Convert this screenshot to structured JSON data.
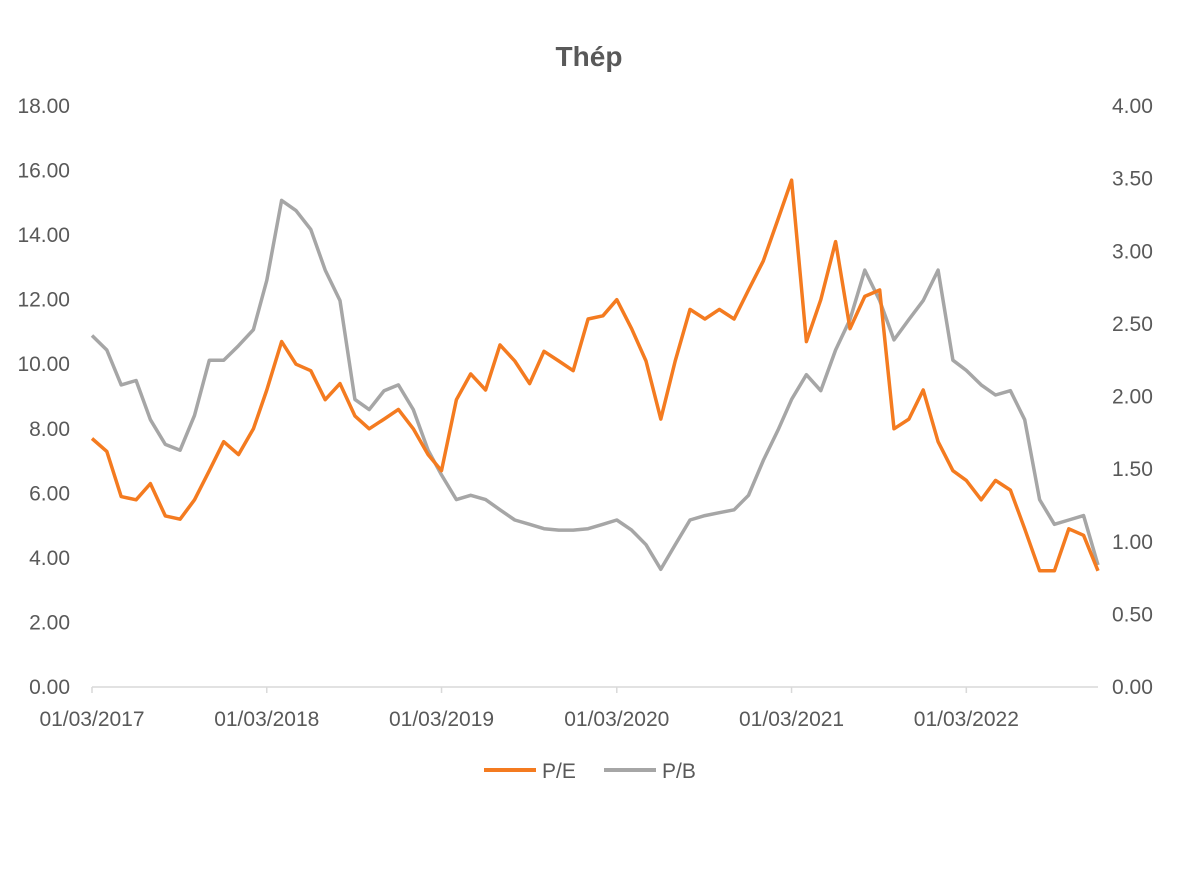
{
  "chart_data": {
    "type": "line",
    "title": "Thép",
    "y_left": {
      "range": [
        0,
        18
      ],
      "ticks": [
        "0.00",
        "2.00",
        "4.00",
        "6.00",
        "8.00",
        "10.00",
        "12.00",
        "14.00",
        "16.00",
        "18.00"
      ]
    },
    "y_right": {
      "range": [
        0,
        4
      ],
      "ticks": [
        "0.00",
        "0.50",
        "1.00",
        "1.50",
        "2.00",
        "2.50",
        "3.00",
        "3.50",
        "4.00"
      ]
    },
    "x_ticks": [
      "01/03/2017",
      "01/03/2018",
      "01/03/2019",
      "01/03/2020",
      "01/03/2021",
      "01/03/2022"
    ],
    "x_range": [
      "2017-03-01",
      "2022-12-01"
    ],
    "grid": false,
    "legend_position": "bottom",
    "x": [
      "2017-03",
      "2017-04",
      "2017-05",
      "2017-06",
      "2017-07",
      "2017-08",
      "2017-09",
      "2017-10",
      "2017-11",
      "2017-12",
      "2018-01",
      "2018-02",
      "2018-03",
      "2018-04",
      "2018-05",
      "2018-06",
      "2018-07",
      "2018-08",
      "2018-09",
      "2018-10",
      "2018-11",
      "2018-12",
      "2019-01",
      "2019-02",
      "2019-03",
      "2019-04",
      "2019-05",
      "2019-06",
      "2019-07",
      "2019-08",
      "2019-09",
      "2019-10",
      "2019-11",
      "2019-12",
      "2020-01",
      "2020-02",
      "2020-03",
      "2020-04",
      "2020-05",
      "2020-06",
      "2020-07",
      "2020-08",
      "2020-09",
      "2020-10",
      "2020-11",
      "2020-12",
      "2021-01",
      "2021-02",
      "2021-03",
      "2021-04",
      "2021-05",
      "2021-06",
      "2021-07",
      "2021-08",
      "2021-09",
      "2021-10",
      "2021-11",
      "2021-12",
      "2022-01",
      "2022-02",
      "2022-03",
      "2022-04",
      "2022-05",
      "2022-06",
      "2022-07",
      "2022-08",
      "2022-09",
      "2022-10",
      "2022-11",
      "2022-12"
    ],
    "series": [
      {
        "name": "P/E",
        "axis": "left",
        "color": "#f47b20",
        "values": [
          7.7,
          7.3,
          5.9,
          5.8,
          6.3,
          5.3,
          5.2,
          5.8,
          6.7,
          7.6,
          7.2,
          8.0,
          9.2,
          10.7,
          10.0,
          9.8,
          8.9,
          9.4,
          8.4,
          8.0,
          8.3,
          8.6,
          8.0,
          7.2,
          6.7,
          8.9,
          9.7,
          9.2,
          10.6,
          10.1,
          9.4,
          10.4,
          10.1,
          9.8,
          11.4,
          11.5,
          12.0,
          11.1,
          10.1,
          8.3,
          10.1,
          11.7,
          11.4,
          11.7,
          11.4,
          12.3,
          13.2,
          14.5,
          15.7,
          10.7,
          12.0,
          13.8,
          11.1,
          12.1,
          12.3,
          8.0,
          8.3,
          9.2,
          7.6,
          6.7,
          6.4,
          5.8,
          6.4,
          6.1,
          4.9,
          3.6,
          3.6,
          4.9,
          4.7,
          3.6
        ]
      },
      {
        "name": "P/B",
        "axis": "right",
        "color": "#a6a6a6",
        "values": [
          2.42,
          2.32,
          2.08,
          2.11,
          1.84,
          1.67,
          1.63,
          1.87,
          2.25,
          2.25,
          2.35,
          2.46,
          2.8,
          3.35,
          3.28,
          3.15,
          2.87,
          2.66,
          1.98,
          1.91,
          2.04,
          2.08,
          1.91,
          1.63,
          1.46,
          1.29,
          1.32,
          1.29,
          1.22,
          1.15,
          1.12,
          1.09,
          1.08,
          1.08,
          1.09,
          1.12,
          1.15,
          1.08,
          0.98,
          0.81,
          0.98,
          1.15,
          1.18,
          1.2,
          1.22,
          1.32,
          1.56,
          1.77,
          1.98,
          2.15,
          2.04,
          2.32,
          2.53,
          2.87,
          2.66,
          2.39,
          2.53,
          2.66,
          2.87,
          2.25,
          2.18,
          2.08,
          2.01,
          2.04,
          1.84,
          1.29,
          1.12,
          1.15,
          1.18,
          0.84
        ]
      }
    ]
  }
}
